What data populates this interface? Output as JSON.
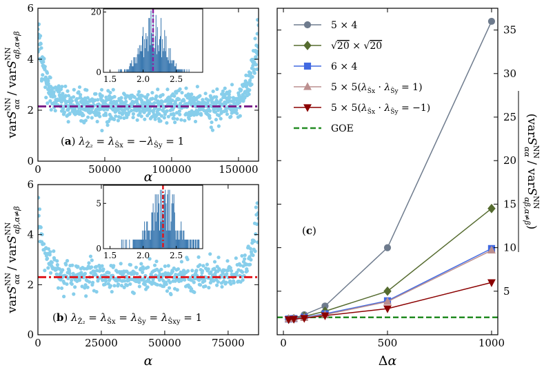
{
  "chart_data": [
    {
      "id": "a",
      "type": "scatter",
      "panel_label": "(a)",
      "annotation": "λ_Ẑ2 = λ_Ŝx = −λ_Ŝy = 1",
      "ylabel": "varS^NN_αα / varS^NN_αβ,α≠β",
      "xlabel": "α",
      "xlim": [
        0,
        165000
      ],
      "ylim": [
        0,
        6
      ],
      "xticks": [
        "0",
        "50000",
        "100000",
        "150000"
      ],
      "xtick_values": [
        0,
        50000,
        100000,
        150000
      ],
      "yticks": [
        "0",
        "2",
        "4",
        "6"
      ],
      "ytick_values": [
        0,
        2,
        4,
        6
      ],
      "hline": 2.15,
      "hline_color": "#7a1f8a",
      "point_color": "#87ceeb",
      "scatter_model": {
        "n_points": 900,
        "baseline": 2.15,
        "spread": 0.28,
        "edge_rise": 3.4
      },
      "inset": {
        "type": "histogram",
        "xlim": [
          1.4,
          2.9
        ],
        "ylim": [
          0,
          21
        ],
        "xticks": [
          "1.5",
          "2.0",
          "2.5"
        ],
        "xtick_values": [
          1.5,
          2.0,
          2.5
        ],
        "yticks": [
          "0",
          "20"
        ],
        "ytick_values": [
          0,
          20
        ],
        "mean": 2.15,
        "peak": 18,
        "sigma": 0.17,
        "mean_line_color": "#8a1ea0",
        "bar_color": "#3a78b0"
      }
    },
    {
      "id": "b",
      "type": "scatter",
      "panel_label": "(b)",
      "annotation": "λ_Ẑ2 = λ_Ŝx = λ_Ŝy = λ_Ŝxy = 1",
      "ylabel": "varS^NN_αα / varS^NN_αβ,α≠β",
      "xlabel": "α",
      "xlim": [
        0,
        87000
      ],
      "ylim": [
        0,
        6
      ],
      "xticks": [
        "0",
        "25000",
        "50000",
        "75000"
      ],
      "xtick_values": [
        0,
        25000,
        50000,
        75000
      ],
      "yticks": [
        "0",
        "2",
        "4",
        "6"
      ],
      "ytick_values": [
        0,
        2,
        4,
        6
      ],
      "hline": 2.3,
      "hline_color": "#e0161c",
      "point_color": "#87ceeb",
      "scatter_model": {
        "n_points": 520,
        "baseline": 2.3,
        "spread": 0.27,
        "edge_rise": 3.0
      },
      "inset": {
        "type": "histogram",
        "xlim": [
          1.4,
          2.9
        ],
        "ylim": [
          0,
          7
        ],
        "xticks": [
          "1.5",
          "2.0",
          "2.5"
        ],
        "xtick_values": [
          1.5,
          2.0,
          2.5
        ],
        "yticks": [
          "0",
          "5"
        ],
        "ytick_values": [
          0,
          5
        ],
        "mean": 2.3,
        "peak": 6,
        "sigma": 0.2,
        "mean_line_color": "#e0161c",
        "bar_color": "#3a78b0"
      }
    },
    {
      "id": "c",
      "type": "line",
      "panel_label": "(c)",
      "xlabel": "Δα",
      "ylabel": "⟨varS^NN_αα / varS^NN_αβ,α≠β⟩",
      "xlim": [
        -30,
        1030
      ],
      "ylim": [
        0,
        37.5
      ],
      "xticks": [
        "0",
        "500",
        "1000"
      ],
      "xtick_values": [
        0,
        500,
        1000
      ],
      "yticks": [
        "5",
        "10",
        "15",
        "20",
        "25",
        "30",
        "35"
      ],
      "ytick_values": [
        5,
        10,
        15,
        20,
        25,
        30,
        35
      ],
      "x": [
        25,
        50,
        100,
        200,
        500,
        1000
      ],
      "series": [
        {
          "name": "5 × 4",
          "color": "#6e7b8d",
          "marker": "circle",
          "values": [
            1.85,
            1.9,
            2.3,
            3.3,
            10.0,
            36.0
          ]
        },
        {
          "name": "√20 × √20",
          "color": "#556b2f",
          "marker": "diamond",
          "values": [
            1.8,
            1.85,
            2.1,
            2.7,
            5.0,
            14.5
          ]
        },
        {
          "name": "6 × 4",
          "color": "#4169e1",
          "marker": "square",
          "values": [
            1.8,
            1.85,
            2.0,
            2.4,
            3.9,
            9.9
          ]
        },
        {
          "name": "5 × 5(λ_Ŝx · λ_Ŝy = 1)",
          "color": "#bc8f8f",
          "marker": "triangle-up",
          "values": [
            1.8,
            1.85,
            1.95,
            2.3,
            3.8,
            9.7
          ]
        },
        {
          "name": "5 × 5(λ_Ŝx · λ_Ŝy = −1)",
          "color": "#8b0000",
          "marker": "triangle-down",
          "values": [
            1.75,
            1.8,
            1.9,
            2.2,
            3.0,
            6.0
          ]
        }
      ],
      "reference": {
        "name": "GOE",
        "value": 2.0,
        "color": "#228b22",
        "style": "dashed"
      }
    }
  ]
}
